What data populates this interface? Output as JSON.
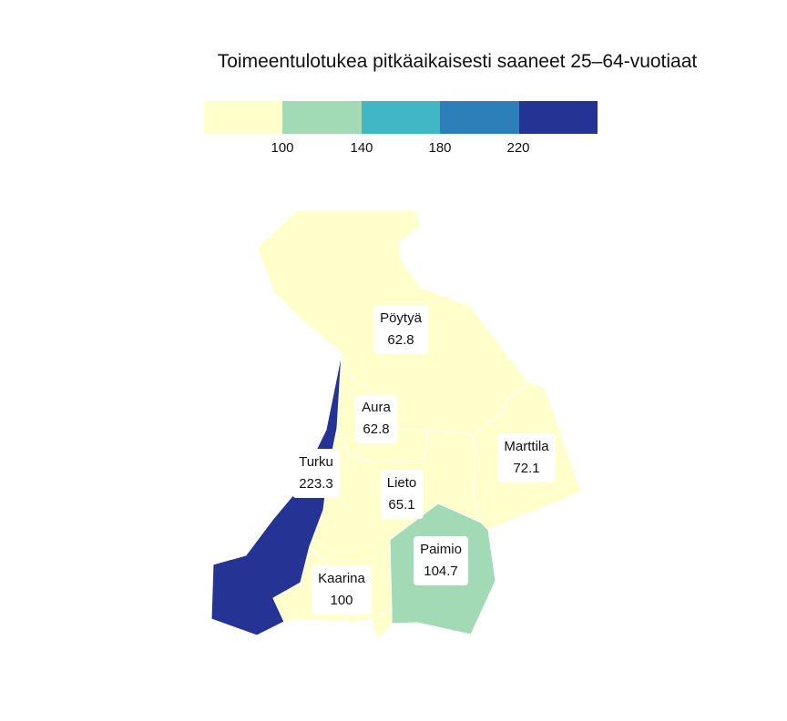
{
  "title": "Toimeentulotukea pitkäaikaisesti saaneet 25–64-vuotiaat",
  "legend": {
    "colors": [
      "#ffffcc",
      "#a1dab4",
      "#41b6c4",
      "#2c7fb8",
      "#253494"
    ],
    "breaks": [
      "100",
      "140",
      "180",
      "220"
    ]
  },
  "regions": {
    "poytya": {
      "name": "Pöytyä",
      "value": "62.8",
      "color": "#ffffcc"
    },
    "aura": {
      "name": "Aura",
      "value": "62.8",
      "color": "#ffffcc"
    },
    "marttila": {
      "name": "Marttila",
      "value": "72.1",
      "color": "#ffffcc"
    },
    "turku": {
      "name": "Turku",
      "value": "223.3",
      "color": "#253494"
    },
    "lieto": {
      "name": "Lieto",
      "value": "65.1",
      "color": "#ffffcc"
    },
    "paimio": {
      "name": "Paimio",
      "value": "104.7",
      "color": "#a1dab4"
    },
    "kaarina": {
      "name": "Kaarina",
      "value": "100",
      "color": "#ffffcc"
    }
  }
}
